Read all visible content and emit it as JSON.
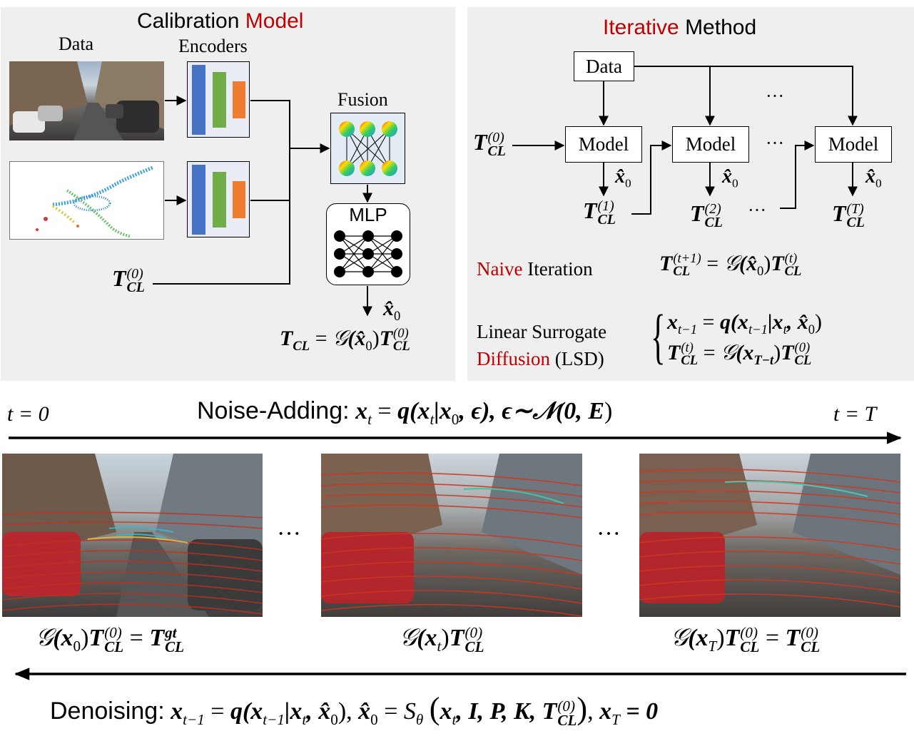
{
  "calibration_panel": {
    "title_part1": "Calibration",
    "title_part2": "Model",
    "data_label": "Data",
    "encoders_label": "Encoders",
    "fusion_label": "Fusion",
    "mlp_label": "MLP",
    "init_pose": {
      "symbol": "T",
      "sup": "(0)",
      "sub": "CL"
    },
    "x0_hat": "x̂",
    "x0_sub": "0",
    "output_formula": {
      "lhs": "T",
      "lhs_sub": "CL",
      "eq": "=",
      "g": "𝒢",
      "arg": "(x̂",
      "arg_sub": "0",
      "close": ")",
      "rhs": "T",
      "rhs_sup": "(0)",
      "rhs_sub": "CL"
    }
  },
  "iterative_panel": {
    "title_part1": "Iterative",
    "title_part2": "Method",
    "data_box": "Data",
    "model_box": "Model",
    "ellipsis": "···",
    "x0_hat": "x̂",
    "x0_sub": "0",
    "t0": {
      "symbol": "T",
      "sup": "(0)",
      "sub": "CL"
    },
    "t1": {
      "symbol": "T",
      "sup": "(1)",
      "sub": "CL"
    },
    "t2": {
      "symbol": "T",
      "sup": "(2)",
      "sub": "CL"
    },
    "tT": {
      "symbol": "T",
      "sup": "(T)",
      "sub": "CL"
    },
    "naive_label_part1": "Naive",
    "naive_label_part2": "Iteration",
    "naive_formula": {
      "lhs": "T",
      "lhs_sup": "(t+1)",
      "lhs_sub": "CL",
      "eq": "=",
      "g": "𝒢",
      "arg": "(x̂",
      "arg_sub": "0",
      "close": ")",
      "rhs": "T",
      "rhs_sup": "(t)",
      "rhs_sub": "CL"
    },
    "lsd_label_line1": "Linear Surrogate",
    "lsd_label_line2_part1": "Diffusion",
    "lsd_label_line2_part2": "(LSD)",
    "lsd_formula1": {
      "lhs": "x",
      "lhs_sub": "t−1",
      "eq": "=",
      "q": "q",
      "open": "(x",
      "a_sub": "t−1",
      "bar": "|x",
      "b_sub": "t",
      "comma": ", x̂",
      "c_sub": "0",
      "close": ")"
    },
    "lsd_formula2": {
      "lhs": "T",
      "lhs_sup": "(t)",
      "lhs_sub": "CL",
      "eq": "=",
      "g": "𝒢",
      "arg": "(x",
      "arg_sub": "T−t",
      "close": ")",
      "rhs": "T",
      "rhs_sup": "(0)",
      "rhs_sub": "CL"
    }
  },
  "noise_adding": {
    "t_start": "t = 0",
    "t_end": "t = T",
    "label": "Noise-Adding:",
    "formula": {
      "lhs": "x",
      "lhs_sub": "t",
      "eq": "=",
      "q": "q",
      "open": "(x",
      "a_sub": "t",
      "bar": "|x",
      "b_sub": "0",
      "rest": ", ϵ), ϵ∼𝒩(0, ",
      "e": "E",
      "close": ")"
    }
  },
  "frames": {
    "ellipsis": "···",
    "caption1": {
      "g": "𝒢",
      "arg": "(x",
      "arg_sub": "0",
      "close": ")",
      "t": "T",
      "t_sup": "(0)",
      "t_sub": "CL",
      "eq": "=",
      "rhs": "T",
      "rhs_sup": "gt",
      "rhs_sub": "CL"
    },
    "caption2": {
      "g": "𝒢",
      "arg": "(x",
      "arg_sub": "t",
      "close": ")",
      "t": "T",
      "t_sup": "(0)",
      "t_sub": "CL"
    },
    "caption3": {
      "g": "𝒢",
      "arg": "(x",
      "arg_sub": "T",
      "close": ")",
      "t": "T",
      "t_sup": "(0)",
      "t_sub": "CL",
      "eq": "=",
      "rhs": "T",
      "rhs_sup": "(0)",
      "rhs_sub": "CL"
    }
  },
  "denoising": {
    "label": "Denoising:",
    "formula": {
      "lhs": "x",
      "lhs_sub": "t−1",
      "eq": "=",
      "q": "q",
      "open": "(x",
      "a_sub": "t−1",
      "bar": "|x",
      "b_sub": "t",
      "comma": ", x̂",
      "c_sub": "0",
      "close": "),",
      "x0": "x̂",
      "x0_sub": "0",
      "eq2": "=",
      "s": "S",
      "s_sub": "θ",
      "args": "x",
      "args_sub": "t",
      "args_rest": ", I, P, K, ",
      "t": "T",
      "t_sup": "(0)",
      "t_sub": "CL",
      "tail": "x",
      "tail_sub": "T",
      "tail_eq": "= 0"
    }
  },
  "colors": {
    "panel_bg": "#efefef",
    "accent_red": "#c00000",
    "blue_bar": "#4472c4",
    "green_bar": "#70ad47",
    "orange_bar": "#ed7d31"
  }
}
